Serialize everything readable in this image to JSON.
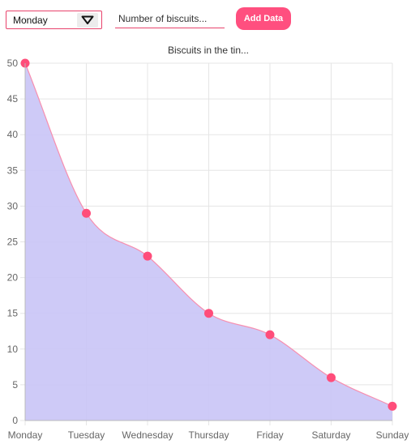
{
  "controls": {
    "day_select": {
      "selected": "Monday",
      "icon": "triangle-down-icon"
    },
    "biscuit_input": {
      "value": "",
      "placeholder": "Number of biscuits..."
    },
    "add_button": {
      "label": "Add Data"
    }
  },
  "colors": {
    "accent": "#e8436c",
    "button": "#ff4f7f",
    "point": "#ff4d7a",
    "line": "#f78fb0",
    "area_fill": "#c9c4f6",
    "grid": "#e5e5e5"
  },
  "chart_data": {
    "type": "area",
    "title": "Biscuits in the tin...",
    "categories": [
      "Monday",
      "Tuesday",
      "Wednesday",
      "Thursday",
      "Friday",
      "Saturday",
      "Sunday"
    ],
    "series": [
      {
        "values": [
          50,
          29,
          23,
          15,
          12,
          6,
          2
        ]
      }
    ],
    "ylim": [
      0,
      50
    ],
    "y_ticks": [
      0,
      5,
      10,
      15,
      20,
      25,
      30,
      35,
      40,
      45,
      50
    ],
    "xlabel": "",
    "ylabel": "",
    "grid": true,
    "legend": "none",
    "smooth": true
  }
}
